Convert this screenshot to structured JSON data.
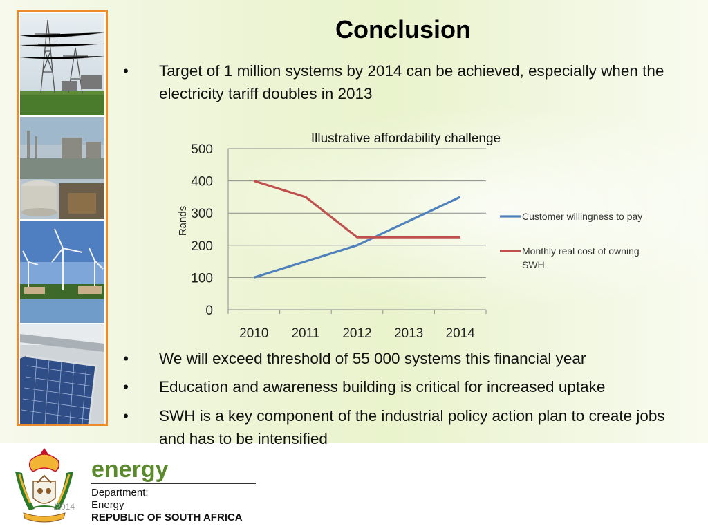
{
  "slide": {
    "title": "Conclusion",
    "bullets_top": [
      {
        "marker": "•",
        "text": "Target of 1 million systems by 2014 can be achieved, especially when the electricity tariff doubles in 2013"
      }
    ],
    "bullets_bottom": [
      {
        "marker": "•",
        "text": "We will exceed threshold of 55 000 systems this financial year"
      },
      {
        "marker": "•",
        "text": "Education and awareness building is critical for increased uptake"
      },
      {
        "marker": "•",
        "text": "SWH is a key component of the industrial policy action plan to create jobs and has to be intensified"
      }
    ]
  },
  "chart_data": {
    "type": "line",
    "title": "Illustrative affordability challenge",
    "xlabel": "",
    "ylabel": "Rands",
    "categories": [
      "2010",
      "2011",
      "2012",
      "2013",
      "2014"
    ],
    "ylim": [
      0,
      500
    ],
    "yticks": [
      "0",
      "100",
      "200",
      "300",
      "400",
      "500"
    ],
    "grid": true,
    "legend_position": "right",
    "series": [
      {
        "name": "Customer willingness to pay",
        "color": "#4f81bd",
        "values": [
          100,
          150,
          200,
          275,
          350
        ]
      },
      {
        "name": "Monthly real cost of owning SWH",
        "color": "#c0504d",
        "values": [
          400,
          350,
          225,
          225,
          225
        ]
      }
    ]
  },
  "footer": {
    "date": "/2014",
    "logo_word": "energy",
    "dept_line1": "Department:",
    "dept_line2": "Energy",
    "dept_line3": "REPUBLIC OF SOUTH AFRICA"
  }
}
